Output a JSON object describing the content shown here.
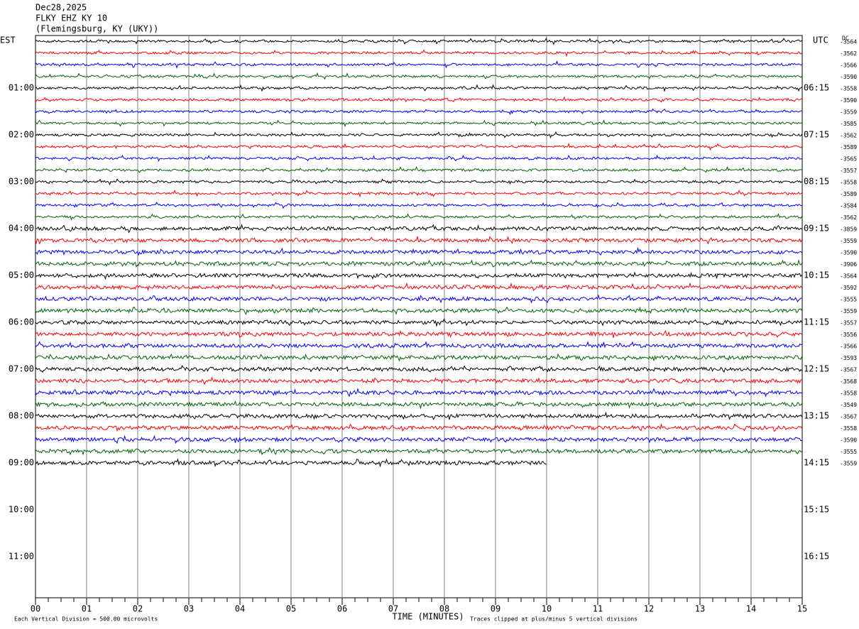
{
  "header": {
    "date": "Dec28,2025",
    "station": "FLKY EHZ KY 10",
    "location": "(Flemingsburg, KY (UKY))"
  },
  "left_label": "EST",
  "right_label": "UTC",
  "dc_label": "DC",
  "x_axis": {
    "title": "TIME (MINUTES)",
    "ticks": [
      "00",
      "01",
      "02",
      "03",
      "04",
      "05",
      "06",
      "07",
      "08",
      "09",
      "10",
      "11",
      "12",
      "13",
      "14",
      "15"
    ]
  },
  "left_times": [
    "01:00",
    "02:00",
    "03:00",
    "04:00",
    "05:00",
    "06:00",
    "07:00",
    "08:00",
    "09:00",
    "10:00",
    "11:00"
  ],
  "right_times": [
    "06:15",
    "07:15",
    "08:15",
    "09:15",
    "10:15",
    "11:15",
    "12:15",
    "13:15",
    "14:15",
    "15:15",
    "16:15"
  ],
  "offsets": [
    "-3564",
    "-3562",
    "-3566",
    "-3590",
    "-3558",
    "-3590",
    "-3559",
    "-3585",
    "-3562",
    "-3589",
    "-3565",
    "-3557",
    "-3558",
    "-3589",
    "-3584",
    "-3562",
    "-3859",
    "-3559",
    "-3590",
    "-3906",
    "-3564",
    "-3592",
    "-3555",
    "-3559",
    "-3557",
    "-3556",
    "-3566",
    "-3593",
    "-3567",
    "-3568",
    "-3558",
    "-3549",
    "-3567",
    "-3558",
    "-3590",
    "-3555",
    "-3559"
  ],
  "trace_colors": [
    "#000000",
    "#ff0000",
    "#0000ff",
    "#006400"
  ],
  "footer": {
    "scale": "Each Vertical Division =  500.00 microvolts",
    "clip": "Traces clipped at plus/minus 5 vertical divisions"
  }
}
